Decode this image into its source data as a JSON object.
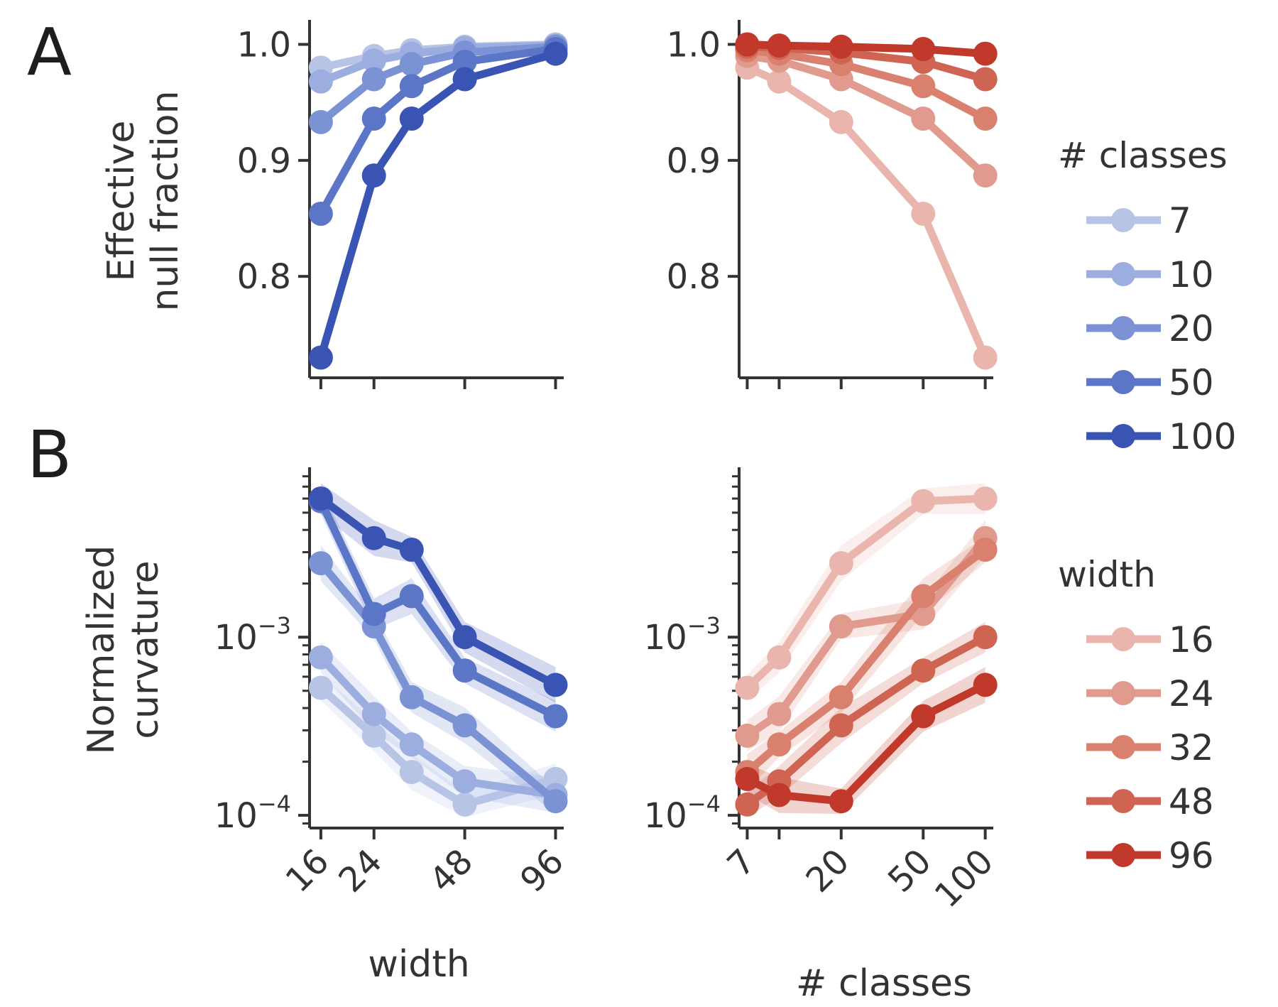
{
  "panel_labels": [
    "A",
    "B"
  ],
  "chart_data": [
    {
      "id": "A-left",
      "type": "line",
      "xlabel": "",
      "ylabel": "Effective\nnull fraction",
      "x": [
        16,
        24,
        32,
        48,
        96
      ],
      "x_scale": "log",
      "xlim": [
        15,
        100
      ],
      "x_ticks": [
        16,
        24,
        48,
        96
      ],
      "ylim": [
        0.715,
        1.015
      ],
      "y_ticks": [
        {
          "v": 0.8,
          "label": "0.8"
        },
        {
          "v": 0.9,
          "label": "0.9"
        },
        {
          "v": 1.0,
          "label": "1.0"
        }
      ],
      "legend_group": "classes",
      "series": [
        {
          "name": "7",
          "values": [
            0.98,
            0.99,
            0.995,
            0.998,
            1.0
          ]
        },
        {
          "name": "10",
          "values": [
            0.968,
            0.986,
            0.992,
            0.997,
            0.999
          ]
        },
        {
          "name": "20",
          "values": [
            0.933,
            0.97,
            0.983,
            0.993,
            0.998
          ]
        },
        {
          "name": "50",
          "values": [
            0.854,
            0.936,
            0.964,
            0.985,
            0.996
          ]
        },
        {
          "name": "100",
          "values": [
            0.73,
            0.887,
            0.936,
            0.97,
            0.992
          ]
        }
      ]
    },
    {
      "id": "A-right",
      "type": "line",
      "xlabel": "",
      "ylabel": "",
      "x": [
        7,
        10,
        20,
        50,
        100
      ],
      "x_scale": "log",
      "xlim": [
        6.6,
        106
      ],
      "x_ticks": [
        7,
        10,
        20,
        50,
        100
      ],
      "ylim": [
        0.715,
        1.015
      ],
      "y_ticks": [
        {
          "v": 0.8,
          "label": "0.8"
        },
        {
          "v": 0.9,
          "label": "0.9"
        },
        {
          "v": 1.0,
          "label": "1.0"
        }
      ],
      "legend_group": "width",
      "series": [
        {
          "name": "16",
          "values": [
            0.98,
            0.968,
            0.933,
            0.854,
            0.73
          ]
        },
        {
          "name": "24",
          "values": [
            0.99,
            0.986,
            0.97,
            0.936,
            0.887
          ]
        },
        {
          "name": "32",
          "values": [
            0.995,
            0.992,
            0.983,
            0.964,
            0.936
          ]
        },
        {
          "name": "48",
          "values": [
            0.998,
            0.997,
            0.993,
            0.985,
            0.97
          ]
        },
        {
          "name": "96",
          "values": [
            1.0,
            0.999,
            0.998,
            0.996,
            0.992
          ]
        }
      ]
    },
    {
      "id": "B-left",
      "type": "line",
      "xlabel": "width",
      "ylabel": "Normalized\ncurvature",
      "x": [
        16,
        24,
        32,
        48,
        96
      ],
      "x_scale": "log",
      "xlim": [
        15,
        100
      ],
      "x_ticks": [
        16,
        24,
        48,
        96
      ],
      "y_scale": "log",
      "ylim": [
        8.8e-05,
        0.0082
      ],
      "y_ticks": [
        {
          "v": 0.001,
          "base": "10",
          "exp": "−3"
        },
        {
          "v": 0.0001,
          "base": "10",
          "exp": "−4"
        }
      ],
      "legend_group": "classes",
      "series": [
        {
          "name": "7",
          "values": [
            0.00052,
            0.00028,
            0.000175,
            0.000115,
            0.00016
          ]
        },
        {
          "name": "10",
          "values": [
            0.00077,
            0.00037,
            0.00025,
            0.000155,
            0.00013
          ]
        },
        {
          "name": "20",
          "values": [
            0.0026,
            0.00115,
            0.00046,
            0.00032,
            0.00012
          ]
        },
        {
          "name": "50",
          "values": [
            0.0058,
            0.00135,
            0.0017,
            0.00065,
            0.00036
          ]
        },
        {
          "name": "100",
          "values": [
            0.006,
            0.0036,
            0.0031,
            0.001,
            0.00054
          ]
        }
      ]
    },
    {
      "id": "B-right",
      "type": "line",
      "xlabel": "# classes",
      "ylabel": "",
      "x": [
        7,
        10,
        20,
        50,
        100
      ],
      "x_scale": "log",
      "xlim": [
        6.6,
        106
      ],
      "x_ticks": [
        7,
        10,
        20,
        50,
        100
      ],
      "x_tick_labels": [
        "7",
        "",
        "20",
        "50",
        "100"
      ],
      "y_scale": "log",
      "ylim": [
        8.8e-05,
        0.0082
      ],
      "y_ticks": [
        {
          "v": 0.001,
          "base": "10",
          "exp": "−3"
        },
        {
          "v": 0.0001,
          "base": "10",
          "exp": "−4"
        }
      ],
      "legend_group": "width",
      "series": [
        {
          "name": "16",
          "values": [
            0.00052,
            0.00077,
            0.0026,
            0.0058,
            0.006
          ]
        },
        {
          "name": "24",
          "values": [
            0.00028,
            0.00037,
            0.00115,
            0.00135,
            0.0036
          ]
        },
        {
          "name": "32",
          "values": [
            0.000175,
            0.00025,
            0.00046,
            0.0017,
            0.0031
          ]
        },
        {
          "name": "48",
          "values": [
            0.000115,
            0.000155,
            0.00032,
            0.00065,
            0.001
          ]
        },
        {
          "name": "96",
          "values": [
            0.00016,
            0.00013,
            0.00012,
            0.00036,
            0.00054
          ]
        }
      ]
    }
  ],
  "legends": {
    "classes": {
      "title": "# classes",
      "entries": [
        "7",
        "10",
        "20",
        "50",
        "100"
      ],
      "colors": [
        "#b8c4e6",
        "#9caddf",
        "#7b93d4",
        "#5b76c7",
        "#3a54b4"
      ]
    },
    "width": {
      "title": "width",
      "entries": [
        "16",
        "24",
        "32",
        "48",
        "96"
      ],
      "colors": [
        "#e9b5ad",
        "#e19a8e",
        "#d9806f",
        "#cf6453",
        "#c1392b"
      ]
    }
  }
}
